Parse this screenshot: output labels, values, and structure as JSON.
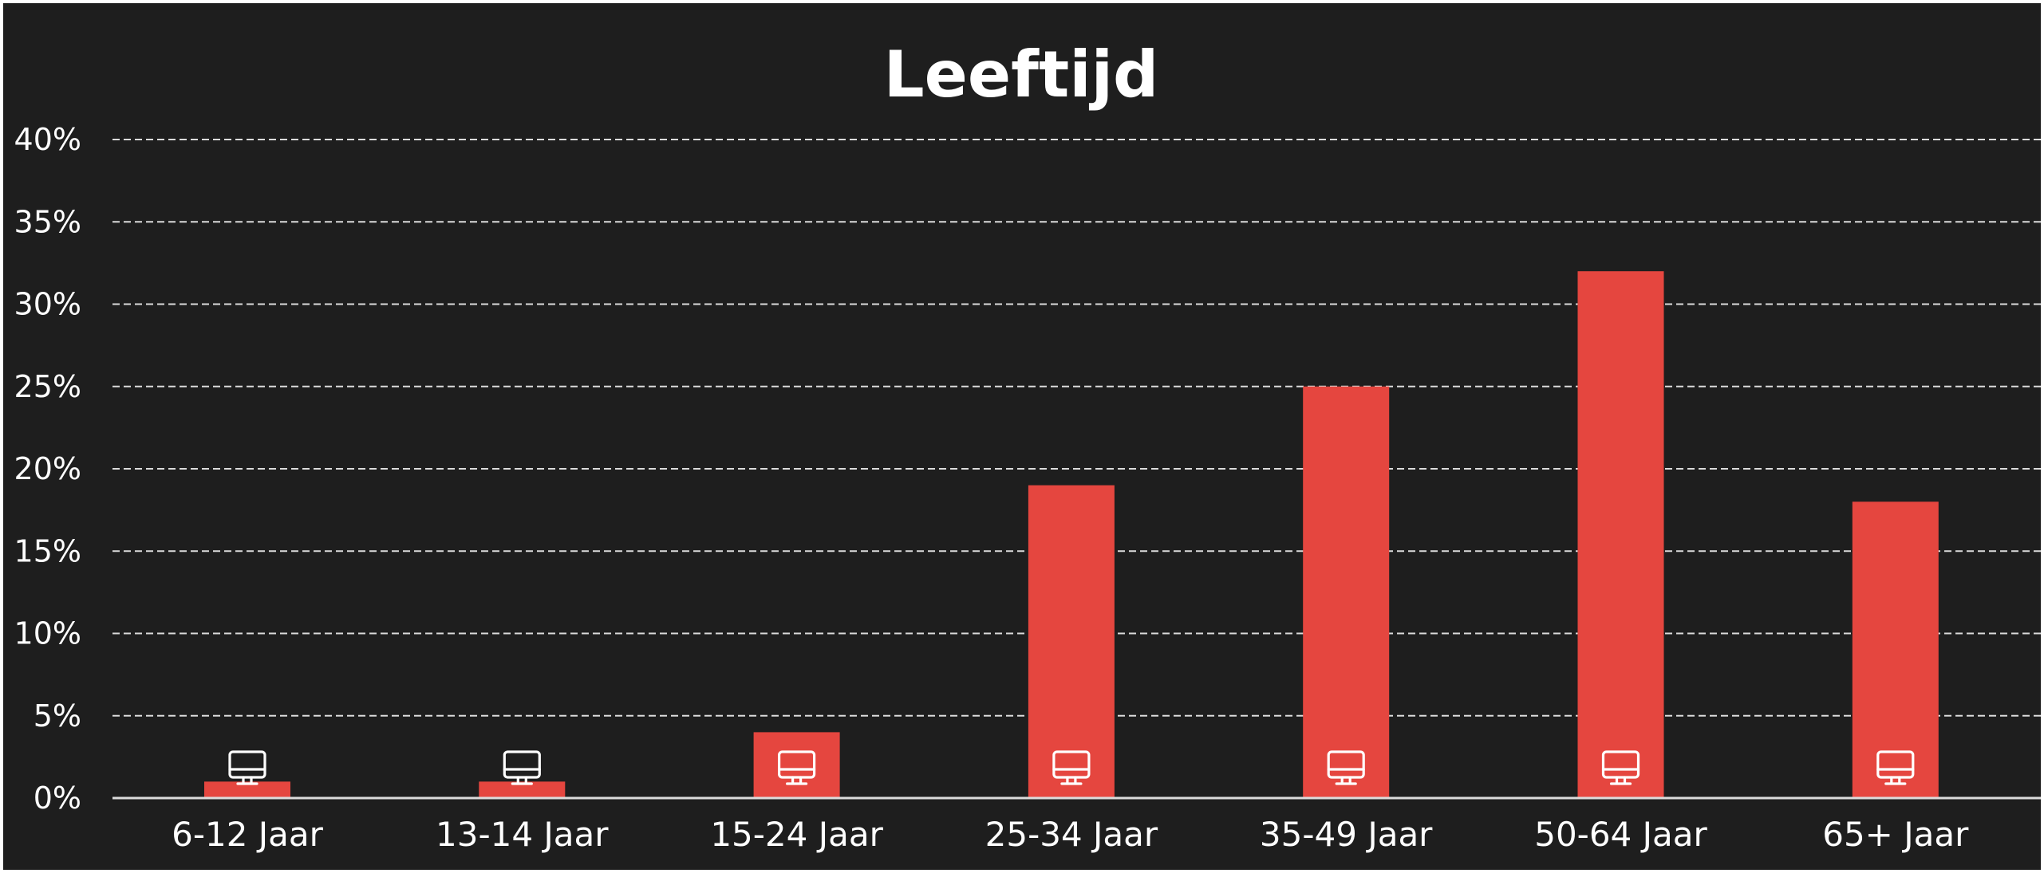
{
  "chart_data": {
    "type": "bar",
    "title": "Leeftijd",
    "categories": [
      "6-12 Jaar",
      "13-14 Jaar",
      "15-24 Jaar",
      "25-34 Jaar",
      "35-49 Jaar",
      "50-64 Jaar",
      "65+ Jaar"
    ],
    "values": [
      1,
      1,
      4,
      19,
      25,
      32,
      18
    ],
    "value_unit": "%",
    "ylim": [
      0,
      40
    ],
    "yticks": [
      "0%",
      "5%",
      "10%",
      "15%",
      "20%",
      "25%",
      "30%",
      "35%",
      "40%"
    ],
    "grid": "horizontal dashed",
    "legend": "none",
    "bar_icon": "monitor-icon",
    "colors": {
      "background": "#1e1e1e",
      "bar": "#e5463f",
      "text": "#ffffff",
      "grid": "#dcdcdc"
    }
  }
}
